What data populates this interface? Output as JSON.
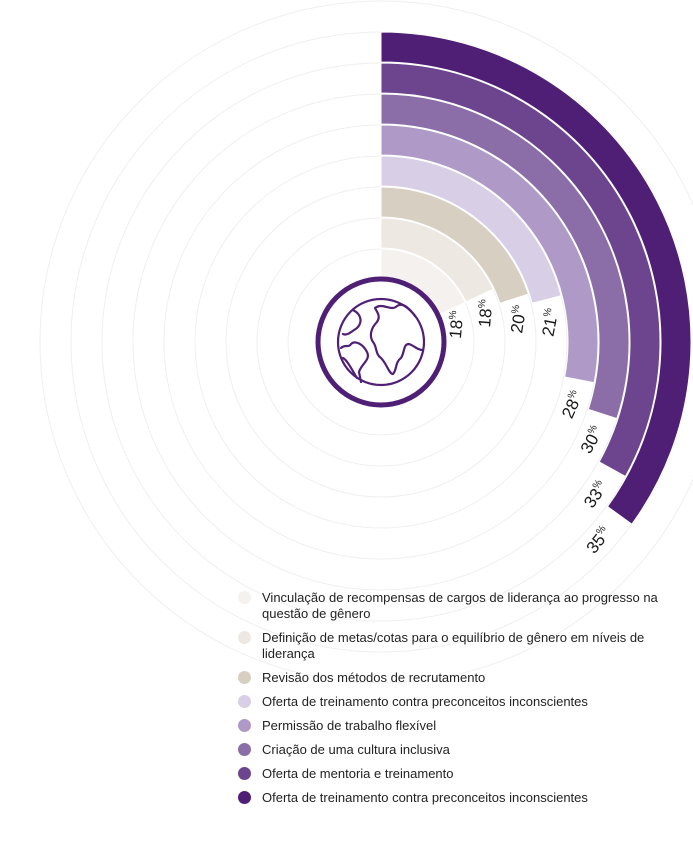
{
  "chart_data": {
    "type": "radial-bar",
    "title": "",
    "scale_max": 100,
    "unit": "%",
    "series": [
      {
        "name": "Vinculação de recompensas de cargos de liderança ao progresso na questão de gênero",
        "value": 18,
        "label": "18",
        "color": "#f4f1ee"
      },
      {
        "name": "Definição de metas/cotas para o equilíbrio de gênero em níveis de liderança",
        "value": 18,
        "label": "18",
        "color": "#ede8e2"
      },
      {
        "name": "Revisão dos métodos de recrutamento",
        "value": 20,
        "label": "20",
        "color": "#d8cfc3"
      },
      {
        "name": "Oferta de treinamento contra preconceitos inconscientes",
        "value": 21,
        "label": "21",
        "color": "#d8cee5"
      },
      {
        "name": "Permissão de trabalho flexível",
        "value": 28,
        "label": "28",
        "color": "#af9ac7"
      },
      {
        "name": "Criação de uma cultura inclusiva",
        "value": 30,
        "label": "30",
        "color": "#8b6ea8"
      },
      {
        "name": "Oferta de mentoria e treinamento",
        "value": 33,
        "label": "33",
        "color": "#6c458e"
      },
      {
        "name": "Oferta de treinamento contra preconceitos inconscientes",
        "value": 35,
        "label": "35",
        "color": "#4f1f76"
      }
    ],
    "legend": "bottom",
    "center_icon": "globe-icon",
    "accent": "#4f1f76"
  }
}
